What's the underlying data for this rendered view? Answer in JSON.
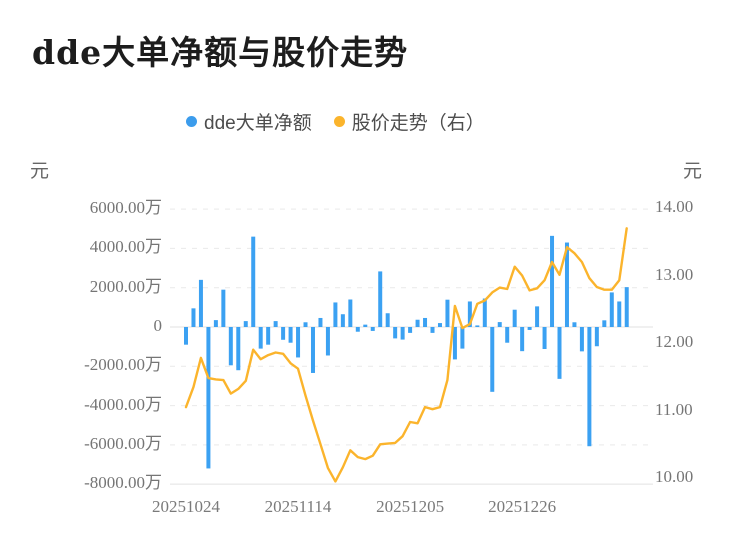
{
  "title": "dde大单净额与股价走势",
  "legend": {
    "items": [
      {
        "label": "dde大单净额",
        "color": "#3b9cec"
      },
      {
        "label": "股价走势（右）",
        "color": "#fbb42c"
      }
    ]
  },
  "left_axis": {
    "unit_label": "元",
    "ticks": [
      {
        "label": "6000.00万",
        "value_wan": 6000
      },
      {
        "label": "4000.00万",
        "value_wan": 4000
      },
      {
        "label": "2000.00万",
        "value_wan": 2000
      },
      {
        "label": "0",
        "value_wan": 0
      },
      {
        "label": "-2000.00万",
        "value_wan": -2000
      },
      {
        "label": "-4000.00万",
        "value_wan": -4000
      },
      {
        "label": "-6000.00万",
        "value_wan": -6000
      },
      {
        "label": "-8000.00万",
        "value_wan": -8000
      }
    ]
  },
  "right_axis": {
    "unit_label": "元",
    "ticks": [
      {
        "label": "14.00",
        "value": 14
      },
      {
        "label": "13.00",
        "value": 13
      },
      {
        "label": "12.00",
        "value": 12
      },
      {
        "label": "11.00",
        "value": 11
      },
      {
        "label": "10.00",
        "value": 10
      }
    ]
  },
  "x_axis": {
    "tick_labels": [
      "20251024",
      "20251114",
      "20251205",
      "20251226"
    ],
    "tick_indices": [
      0,
      15,
      30,
      45
    ]
  },
  "chart_data": {
    "type": "combo-bar-line",
    "n_points": 60,
    "x_note": "daily trading sessions; labeled ticks every 15 sessions",
    "left_axis_range_wan": [
      -8000,
      6000
    ],
    "right_axis_range": [
      10,
      14
    ],
    "grid": "dashed horizontal lines, solid zero and bottom lines",
    "legend_position": "top-center",
    "series": [
      {
        "name": "dde大单净额",
        "type": "bar",
        "yaxis": "left",
        "unit": "万元",
        "color": "#3ba1f2",
        "values_wan": [
          -900,
          950,
          2400,
          -7200,
          350,
          1900,
          -1950,
          -2200,
          300,
          4600,
          -1100,
          -900,
          300,
          -650,
          -800,
          -1550,
          240,
          -2340,
          460,
          -1450,
          1250,
          650,
          1400,
          -240,
          120,
          -200,
          2830,
          700,
          -580,
          -640,
          -300,
          370,
          460,
          -300,
          200,
          1390,
          -1650,
          -1100,
          1300,
          80,
          1450,
          -3300,
          250,
          -800,
          880,
          -1230,
          -150,
          1050,
          -1120,
          4640,
          -2640,
          4300,
          240,
          -1240,
          -6070,
          -980,
          340,
          1760,
          1300,
          2030
        ]
      },
      {
        "name": "股价走势（右）",
        "type": "line",
        "yaxis": "right",
        "unit": "元",
        "color": "#fbb42c",
        "values": [
          11.05,
          11.35,
          11.78,
          11.48,
          11.46,
          11.45,
          11.25,
          11.32,
          11.44,
          11.9,
          11.76,
          11.82,
          11.86,
          11.84,
          11.7,
          11.62,
          11.22,
          10.85,
          10.5,
          10.15,
          9.95,
          10.16,
          10.41,
          10.31,
          10.28,
          10.33,
          10.5,
          10.51,
          10.52,
          10.62,
          10.83,
          10.81,
          11.05,
          11.02,
          11.05,
          11.45,
          12.55,
          12.22,
          12.28,
          12.58,
          12.63,
          12.75,
          12.82,
          12.8,
          13.13,
          13.0,
          12.78,
          12.81,
          12.93,
          13.2,
          13.01,
          13.42,
          13.33,
          13.2,
          12.96,
          12.83,
          12.79,
          12.79,
          12.93,
          13.7
        ]
      }
    ]
  }
}
